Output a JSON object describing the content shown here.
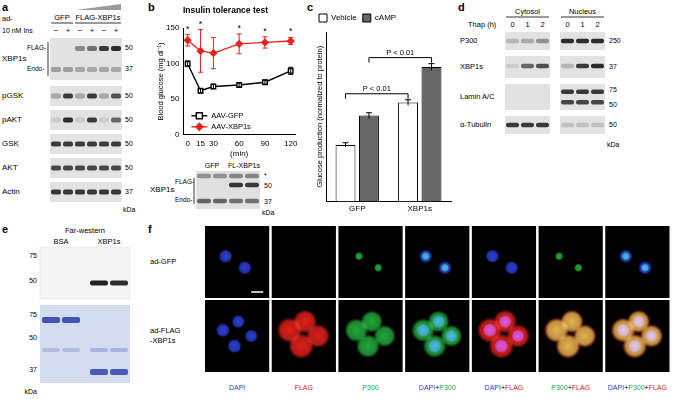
{
  "chart_data": [
    {
      "type": "line",
      "panel": "b",
      "title": "Insulin tolerance test",
      "x_label": "(min)",
      "y_label": "Blood glucose (mg dl⁻¹)",
      "x": [
        0,
        15,
        30,
        60,
        90,
        120
      ],
      "xlim": [
        -5,
        125
      ],
      "xticks": [
        0,
        15,
        30,
        60,
        90,
        120
      ],
      "ylim": [
        0,
        150
      ],
      "yticks": [
        0,
        50,
        100,
        150
      ],
      "grid": false,
      "legend": "bottom",
      "series": [
        {
          "name": "AAV-GFP",
          "color": "#000000",
          "marker": "square",
          "values": [
            100,
            62,
            68,
            70,
            74,
            90
          ],
          "errors": [
            4,
            3,
            3,
            3,
            3,
            5
          ]
        },
        {
          "name": "AAV-XBP1s",
          "color": "#e8231f",
          "marker": "diamond",
          "values": [
            133,
            118,
            115,
            128,
            130,
            132
          ],
          "errors": [
            8,
            30,
            22,
            14,
            8,
            5
          ]
        }
      ],
      "annotations": [
        {
          "text": "*",
          "x": 0
        },
        {
          "text": "*",
          "x": 15
        },
        {
          "text": "*",
          "x": 60
        },
        {
          "text": "*",
          "x": 90
        },
        {
          "text": "*",
          "x": 120
        }
      ]
    },
    {
      "type": "bar",
      "panel": "c",
      "categories": [
        "GFP",
        "XBP1s"
      ],
      "y_label": "Glucose production (normalized to protein)",
      "ylim": [
        0,
        3
      ],
      "tick_labels": "x",
      "grid": false,
      "legend": "top-left",
      "series": [
        {
          "name": "Vehicle",
          "color": "#ffffff",
          "values": [
            1.0,
            1.75
          ],
          "errors": [
            0.04,
            0.05
          ]
        },
        {
          "name": "cAMP",
          "color": "#666666",
          "values": [
            1.52,
            2.38
          ],
          "errors": [
            0.05,
            0.06
          ]
        }
      ],
      "annotations": [
        {
          "text": "P < 0.01",
          "series": "Vehicle"
        },
        {
          "text": "P < 0.01",
          "series": "cAMP"
        }
      ]
    }
  ],
  "panels": {
    "a": {
      "label": "a",
      "ad_label": "ad-",
      "groups": [
        {
          "name": "GFP",
          "lanes": 2
        },
        {
          "name": "FLAG-XBP1s",
          "lanes": 4
        }
      ],
      "treatment": "10 nM Ins",
      "treatment_marks": [
        "−",
        "+",
        "−",
        "+",
        "−",
        "+"
      ],
      "rows": [
        {
          "name": "XBP1s",
          "sub": [
            "FLAG-",
            "Endo-"
          ],
          "markers": [
            50,
            37
          ]
        },
        {
          "name": "pGSK",
          "markers": [
            50
          ]
        },
        {
          "name": "pAKT",
          "markers": [
            50
          ]
        },
        {
          "name": "GSK",
          "markers": [
            50
          ]
        },
        {
          "name": "AKT",
          "markers": [
            50
          ]
        },
        {
          "name": "Actin",
          "markers": [
            37
          ]
        }
      ],
      "unit": "kDa"
    },
    "b_blot": {
      "lanes": [
        "GFP",
        "FL-XBP1s"
      ],
      "row": "XBP1s",
      "sub": [
        "FLAG-",
        "Endo-"
      ],
      "markers": [
        "*",
        50,
        37
      ],
      "unit": "kDa"
    },
    "b_label": "b",
    "c_label": "c",
    "d": {
      "label": "d",
      "groups": [
        "Cytosol",
        "Nucleus"
      ],
      "treatment": "Thap (h)",
      "times": [
        0,
        1,
        2
      ],
      "rows": [
        {
          "name": "P300",
          "markers": [
            250
          ]
        },
        {
          "name": "XBP1s",
          "markers": [
            37
          ]
        },
        {
          "name": "Lamin A/C",
          "markers": [
            75,
            50
          ]
        },
        {
          "name": "α-Tubulin",
          "markers": [
            50
          ]
        }
      ],
      "unit": "kDa"
    },
    "e": {
      "label": "e",
      "title": "Far-western",
      "lanes": [
        "BSA",
        "XBP1s"
      ],
      "top_markers": [
        75,
        50
      ],
      "bottom_markers": [
        75,
        50,
        37
      ],
      "unit": "kDa"
    },
    "f": {
      "label": "f",
      "rows": [
        [
          "ad-GFP"
        ],
        [
          "ad-FLAG",
          "-XBP1s"
        ]
      ],
      "columns": [
        "DAPI",
        "FLAG",
        "P300",
        "DAPI+P300",
        "DAPI+FLAG",
        "P300+FLAG",
        "DAPI+P300+FLAG"
      ],
      "channels": {
        "DAPI": "#2b3fd6",
        "FLAG": "#e0201b",
        "P300": "#22a83a"
      }
    }
  }
}
